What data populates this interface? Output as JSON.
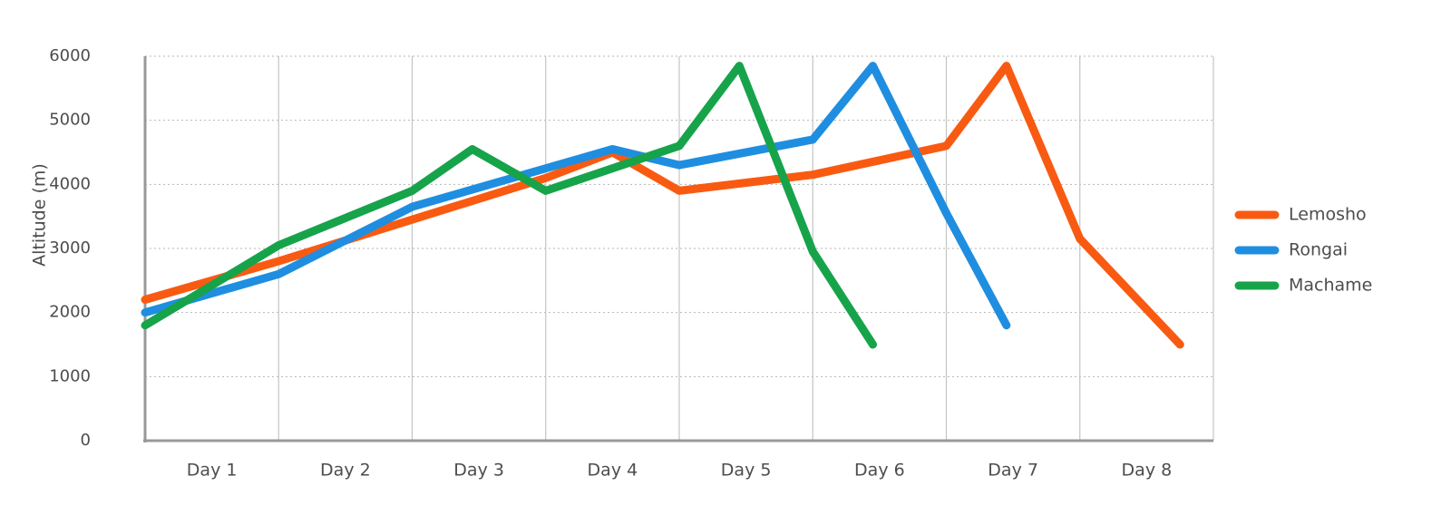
{
  "chart_data": {
    "type": "line",
    "title": "",
    "xlabel": "",
    "ylabel": "Altitude (m)",
    "ylim": [
      0,
      6000
    ],
    "yticks": [
      0,
      1000,
      2000,
      3000,
      4000,
      5000,
      6000
    ],
    "grid": true,
    "legend_position": "right",
    "x_boundaries": [
      0,
      1,
      2,
      3,
      4,
      5,
      6,
      7,
      8
    ],
    "categories": [
      "Day 1",
      "Day 2",
      "Day 3",
      "Day 4",
      "Day 5",
      "Day 6",
      "Day 7",
      "Day 8"
    ],
    "series": [
      {
        "name": "Lemosho",
        "color": "#f95a12",
        "x": [
          0,
          1,
          2,
          3,
          3.5,
          4,
          5,
          6,
          6.45,
          7,
          7.75
        ],
        "y": [
          2200,
          2800,
          3450,
          4100,
          4500,
          3900,
          4150,
          4600,
          5850,
          3150,
          1500
        ]
      },
      {
        "name": "Rongai",
        "color": "#1f8ee0",
        "x": [
          0,
          1,
          2,
          3,
          3.5,
          4,
          5,
          5.45,
          6,
          6.45
        ],
        "y": [
          2000,
          2600,
          3650,
          4250,
          4550,
          4300,
          4700,
          5850,
          3550,
          1800
        ]
      },
      {
        "name": "Machame",
        "color": "#17a34a",
        "x": [
          0,
          1,
          2,
          2.45,
          3,
          4,
          4.45,
          5,
          5.45
        ],
        "y": [
          1800,
          3050,
          3900,
          4550,
          3900,
          4600,
          5850,
          2950,
          1500
        ]
      }
    ]
  }
}
